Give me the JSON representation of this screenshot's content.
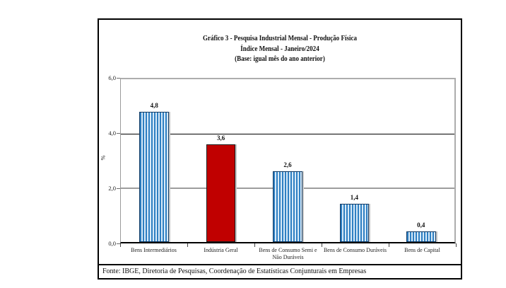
{
  "chart_data": {
    "type": "bar",
    "title": "Gráfico 3 - Pesquisa Industrial Mensal - Produção Física",
    "subtitle": "Índice Mensal - Janeiro/2024",
    "base_note": "(Base: igual mês do ano anterior)",
    "ylabel": "%",
    "ylim": [
      0,
      6
    ],
    "grid": "horizontal",
    "legend_position": "none",
    "categories": [
      "Bens Intermediários",
      "Indústria Geral",
      "Bens de Consumo Semi e Não Duráveis",
      "Bens de Consumo Duráveis",
      "Bens de Capital"
    ],
    "values": [
      4.8,
      3.6,
      2.6,
      1.4,
      0.4
    ],
    "value_labels": [
      "4,8",
      "3,6",
      "2,6",
      "1,4",
      "0,4"
    ],
    "yticks": [
      {
        "value": 6,
        "label": "6,0"
      },
      {
        "value": 4,
        "label": "4,0"
      },
      {
        "value": 2,
        "label": "2,0"
      },
      {
        "value": 0,
        "label": "0,0"
      }
    ],
    "gridlines": [
      {
        "value": 4,
        "color": "#000000",
        "width": 1
      },
      {
        "value": 2,
        "color": "#9D9D9D",
        "width": 2
      }
    ],
    "bar_fill": [
      "striped-blue",
      "solid-red",
      "striped-blue",
      "striped-blue",
      "striped-blue"
    ],
    "colors": {
      "stripe_blue": "#2E7FC2",
      "stripe_light": "#D8EAF8",
      "solid_red": "#C00000",
      "blue_bar_border": "#123A63",
      "red_bar_border": "#1A1A1A",
      "plot_border": "#ADADAD",
      "axis_black": "#000000"
    }
  },
  "footer": {
    "source": "Fonte: IBGE, Diretoria de Pesquisas, Coordenação de Estatísticas Conjunturais em Empresas"
  }
}
